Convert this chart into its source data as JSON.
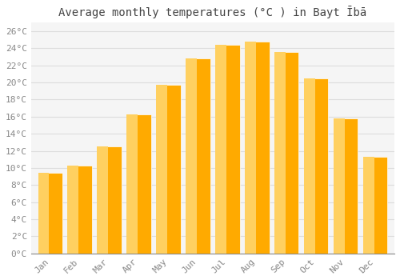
{
  "months": [
    "Jan",
    "Feb",
    "Mar",
    "Apr",
    "May",
    "Jun",
    "Jul",
    "Aug",
    "Sep",
    "Oct",
    "Nov",
    "Dec"
  ],
  "temperatures": [
    9.4,
    10.3,
    12.5,
    16.3,
    19.7,
    22.8,
    24.4,
    24.8,
    23.6,
    20.5,
    15.8,
    11.3
  ],
  "bar_color_right": "#FFAA00",
  "bar_color_left": "#FFD060",
  "title": "Average monthly temperatures (°C ) in Bayt Ībā",
  "ylim": [
    0,
    27
  ],
  "yticks": [
    0,
    2,
    4,
    6,
    8,
    10,
    12,
    14,
    16,
    18,
    20,
    22,
    24,
    26
  ],
  "ytick_labels": [
    "0°C",
    "2°C",
    "4°C",
    "6°C",
    "8°C",
    "10°C",
    "12°C",
    "14°C",
    "16°C",
    "18°C",
    "20°C",
    "22°C",
    "24°C",
    "26°C"
  ],
  "background_color": "#ffffff",
  "plot_bg_color": "#f5f5f5",
  "grid_color": "#dddddd",
  "title_fontsize": 10,
  "tick_fontsize": 8,
  "tick_color": "#888888"
}
